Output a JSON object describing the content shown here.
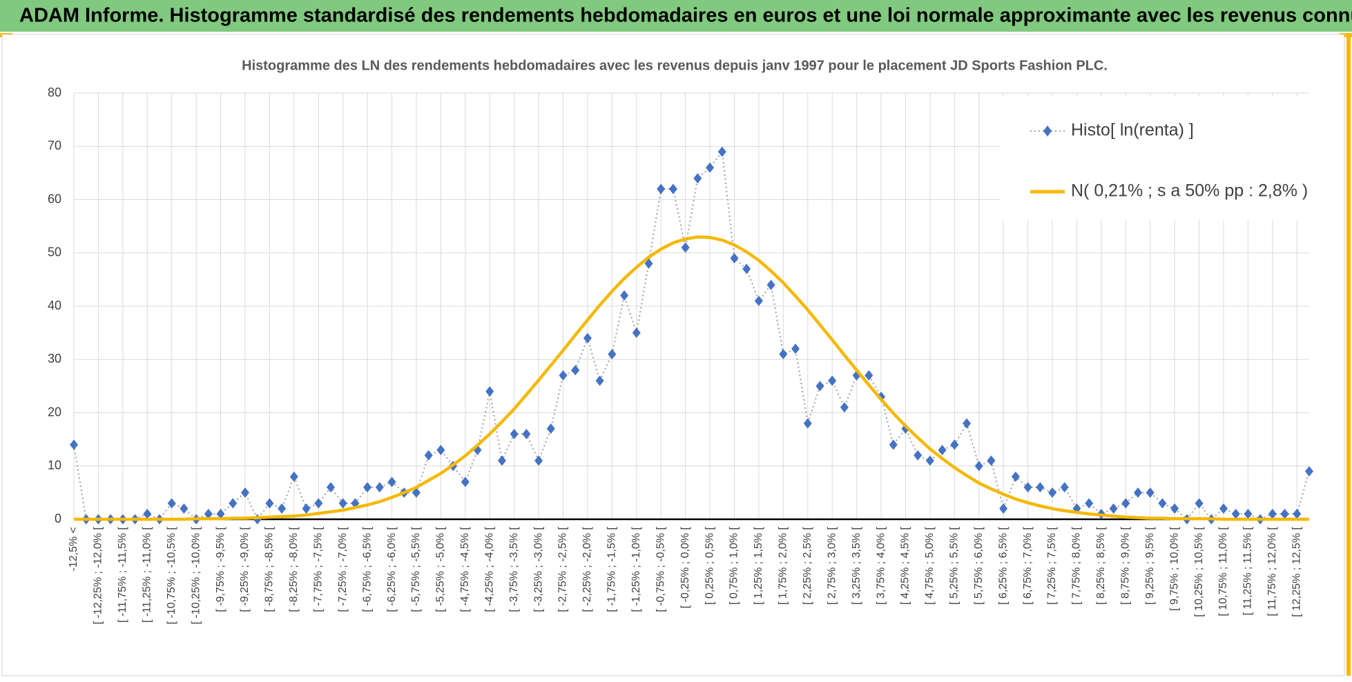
{
  "header": {
    "title": "ADAM Informe. Histogramme standardisé des rendements hebdomadaires en euros et une loi normale approximante avec les revenus connus distribués"
  },
  "chart_data": {
    "type": "line",
    "title": "Histogramme des LN des rendements hebdomadaires avec les revenus depuis janv 1997 pour le placement JD Sports Fashion PLC.",
    "categories": [
      "-12,5% <",
      null,
      "[ -12,25% ; -12,0% [",
      null,
      "[ -11,75% ; -11,5% [",
      null,
      "[ -11,25% ; -11,0% [",
      null,
      "[ -10,75% ; -10,5% [",
      null,
      "[ -10,25% ; -10,0% [",
      null,
      "[ -9,75% ; -9,5% [",
      null,
      "[ -9,25% ; -9,0% [",
      null,
      "[ -8,75% ; -8,5% [",
      null,
      "[ -8,25% ; -8,0% [",
      null,
      "[ -7,75% ; -7,5% [",
      null,
      "[ -7,25% ; -7,0% [",
      null,
      "[ -6,75% ; -6,5% [",
      null,
      "[ -6,25% ; -6,0% [",
      null,
      "[ -5,75% ; -5,5% [",
      null,
      "[ -5,25% ; -5,0% [",
      null,
      "[ -4,75% ; -4,5% [",
      null,
      "[ -4,25% ; -4,0% [",
      null,
      "[ -3,75% ; -3,5% [",
      null,
      "[ -3,25% ; -3,0% [",
      null,
      "[ -2,75% ; -2,5% [",
      null,
      "[ -2,25% ; -2,0% [",
      null,
      "[ -1,75% ; -1,5% [",
      null,
      "[ -1,25% ; -1,0% [",
      null,
      "[ -0,75% ; -0,5% [",
      null,
      "[ -0,25% ; 0,0% [",
      null,
      "[ 0,25% ; 0,5% [",
      null,
      "[ 0,75% ; 1,0% [",
      null,
      "[ 1,25% ; 1,5% [",
      null,
      "[ 1,75% ; 2,0% [",
      null,
      "[ 2,25% ; 2,5% [",
      null,
      "[ 2,75% ; 3,0% [",
      null,
      "[ 3,25% ; 3,5% [",
      null,
      "[ 3,75% ; 4,0% [",
      null,
      "[ 4,25% ; 4,5% [",
      null,
      "[ 4,75% ; 5,0% [",
      null,
      "[ 5,25% ; 5,5% [",
      null,
      "[ 5,75% ; 6,0% [",
      null,
      "[ 6,25% ; 6,5% [",
      null,
      "[ 6,75% ; 7,0% [",
      null,
      "[ 7,25% ; 7,5% [",
      null,
      "[ 7,75% ; 8,0% [",
      null,
      "[ 8,25% ; 8,5% [",
      null,
      "[ 8,75% ; 9,0% [",
      null,
      "[ 9,25% ; 9,5% [",
      null,
      "[ 9,75% ; 10,0% [",
      null,
      "[ 10,25% ; 10,5% [",
      null,
      "[ 10,75% ; 11,0% [",
      null,
      "[ 11,25% ; 11,5% [",
      null,
      "[ 11,75% ; 12,0% [",
      null,
      "[ 12,25% ; 12,5% [",
      null
    ],
    "series": [
      {
        "name": "Histo[ ln(renta) ]",
        "color": "#4472c4",
        "line_color": "#a5a5a5",
        "values": [
          14,
          0,
          0,
          0,
          0,
          0,
          1,
          0,
          3,
          2,
          0,
          1,
          1,
          3,
          5,
          0,
          3,
          2,
          8,
          2,
          3,
          6,
          3,
          3,
          6,
          6,
          7,
          5,
          5,
          12,
          13,
          10,
          7,
          13,
          24,
          11,
          16,
          16,
          11,
          17,
          27,
          28,
          34,
          26,
          31,
          42,
          35,
          48,
          62,
          62,
          51,
          64,
          66,
          69,
          49,
          47,
          41,
          44,
          31,
          32,
          18,
          25,
          26,
          21,
          27,
          27,
          23,
          14,
          17,
          12,
          11,
          13,
          14,
          18,
          10,
          11,
          2,
          8,
          6,
          6,
          5,
          6,
          2,
          3,
          1,
          2,
          3,
          5,
          5,
          3,
          2,
          0,
          3,
          0,
          2,
          1,
          1,
          0,
          1,
          1,
          1,
          9
        ]
      },
      {
        "name": "N( 0,21% ; s a 50% pp : 2,8% )",
        "color": "#f5b800",
        "values": [
          0,
          0,
          0,
          0,
          0,
          0,
          0,
          0,
          0,
          0,
          0.1,
          0.1,
          0.1,
          0.2,
          0.2,
          0.3,
          0.4,
          0.5,
          0.6,
          0.8,
          1.1,
          1.4,
          1.7,
          2.2,
          2.7,
          3.3,
          4.1,
          5.0,
          6.0,
          7.3,
          8.6,
          10.2,
          11.9,
          13.9,
          16.0,
          18.3,
          20.7,
          23.4,
          26.1,
          28.9,
          31.7,
          34.6,
          37.4,
          40.2,
          42.8,
          45.2,
          47.3,
          49.2,
          50.7,
          51.9,
          52.6,
          53.0,
          52.9,
          52.4,
          51.5,
          50.2,
          48.6,
          46.6,
          44.4,
          41.9,
          39.3,
          36.5,
          33.7,
          30.8,
          28.0,
          25.2,
          22.5,
          19.9,
          17.5,
          15.3,
          13.2,
          11.4,
          9.7,
          8.2,
          6.8,
          5.7,
          4.7,
          3.8,
          3.1,
          2.5,
          2.0,
          1.6,
          1.3,
          1.0,
          0.8,
          0.6,
          0.4,
          0.3,
          0.2,
          0.2,
          0.1,
          0.1,
          0.1,
          0.1,
          0,
          0,
          0,
          0,
          0,
          0,
          0,
          0
        ]
      }
    ],
    "ylim": [
      0,
      80
    ],
    "yticks": [
      0,
      10,
      20,
      30,
      40,
      50,
      60,
      70,
      80
    ],
    "grid": true,
    "legend": "upper right"
  }
}
